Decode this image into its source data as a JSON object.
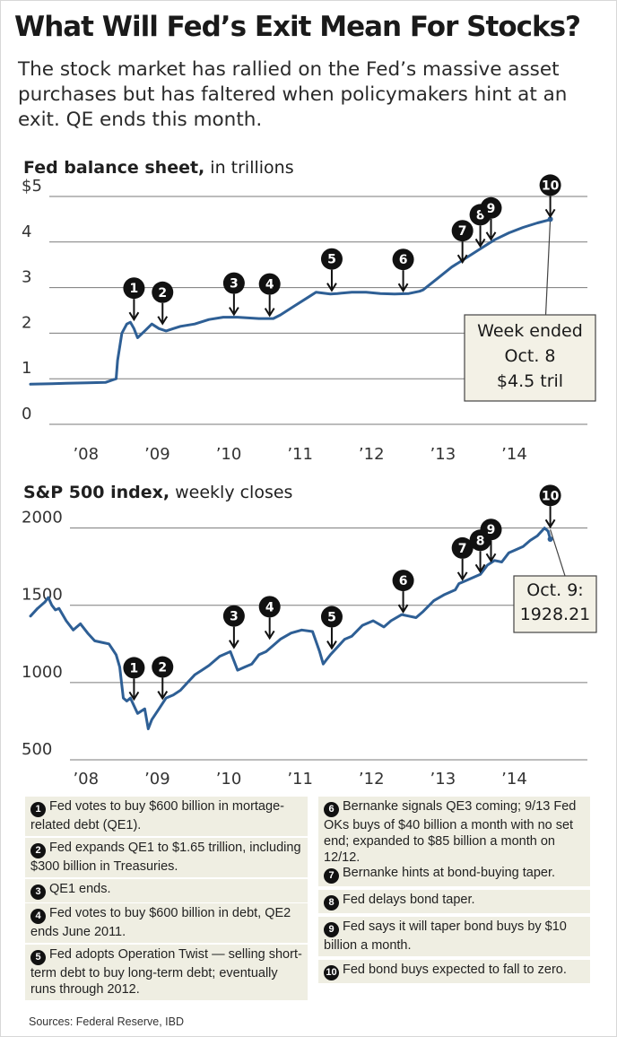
{
  "header": {
    "title": "What Will Fed’s Exit Mean For Stocks?",
    "subtitle": "The stock market has rallied on the Fed’s massive asset purchases but has faltered when policymakers hint at an exit. QE ends this month."
  },
  "colors": {
    "series": "#2e5f95",
    "note_bg": "#efeee2",
    "callout_bg": "#f3f1e6"
  },
  "chart_data": [
    {
      "type": "line",
      "title_bold": "Fed balance sheet,",
      "title_rest": " in trillions",
      "y_tick_labels": [
        "0",
        "1",
        "2",
        "3",
        "4",
        "$5"
      ],
      "y_ticks": [
        0,
        1,
        2,
        3,
        4,
        5
      ],
      "ylim": [
        0,
        5
      ],
      "x_tick_labels": [
        "’08",
        "’09",
        "’10",
        "’11",
        "’12",
        "’13",
        "’14"
      ],
      "x_ticks": [
        2008.0,
        2009.0,
        2010.0,
        2011.0,
        2012.0,
        2013.0,
        2014.0
      ],
      "xlim": [
        2007.4,
        2015.3
      ],
      "grid": true,
      "series": [
        {
          "x": [
            2007.5,
            2007.8,
            2008.0,
            2008.3,
            2008.55,
            2008.7,
            2008.72,
            2008.78,
            2008.85,
            2008.9,
            2008.95,
            2009.0,
            2009.1,
            2009.2,
            2009.3,
            2009.4,
            2009.5,
            2009.6,
            2009.8,
            2010.0,
            2010.2,
            2010.4,
            2010.7,
            2010.9,
            2011.0,
            2011.2,
            2011.4,
            2011.5,
            2011.6,
            2011.7,
            2011.8,
            2012.0,
            2012.2,
            2012.4,
            2012.6,
            2012.8,
            2012.95,
            2013.0,
            2013.2,
            2013.4,
            2013.6,
            2013.8,
            2014.0,
            2014.2,
            2014.4,
            2014.6,
            2014.75,
            2014.78
          ],
          "values": [
            0.88,
            0.89,
            0.9,
            0.91,
            0.92,
            1.0,
            1.4,
            2.0,
            2.2,
            2.24,
            2.1,
            1.9,
            2.05,
            2.2,
            2.1,
            2.05,
            2.1,
            2.15,
            2.2,
            2.3,
            2.35,
            2.35,
            2.32,
            2.32,
            2.4,
            2.6,
            2.8,
            2.9,
            2.88,
            2.86,
            2.87,
            2.9,
            2.9,
            2.87,
            2.86,
            2.87,
            2.92,
            2.95,
            3.2,
            3.45,
            3.65,
            3.85,
            4.05,
            4.2,
            4.32,
            4.42,
            4.48,
            4.5
          ]
        }
      ],
      "markers": [
        {
          "label": "1",
          "x": 2008.95,
          "value": 2.24
        },
        {
          "label": "2",
          "x": 2009.35,
          "value": 2.15
        },
        {
          "label": "3",
          "x": 2010.35,
          "value": 2.35
        },
        {
          "label": "4",
          "x": 2010.85,
          "value": 2.33
        },
        {
          "label": "5",
          "x": 2011.72,
          "value": 2.88
        },
        {
          "label": "6",
          "x": 2012.72,
          "value": 2.87
        },
        {
          "label": "7",
          "x": 2013.55,
          "value": 3.5
        },
        {
          "label": "8",
          "x": 2013.8,
          "value": 3.85
        },
        {
          "label": "9",
          "x": 2013.95,
          "value": 4.0
        },
        {
          "label": "10",
          "x": 2014.78,
          "value": 4.5
        }
      ],
      "annotation": [
        "Week ended",
        "Oct. 8",
        "$4.5 tril"
      ]
    },
    {
      "type": "line",
      "title_bold": "S&P 500 index,",
      "title_rest": " weekly closes",
      "y_tick_labels": [
        "500",
        "1000",
        "1500",
        "2000"
      ],
      "y_ticks": [
        500,
        1000,
        1500,
        2000
      ],
      "ylim": [
        500,
        2050
      ],
      "x_tick_labels": [
        "’08",
        "’09",
        "’10",
        "’11",
        "’12",
        "’13",
        "’14"
      ],
      "x_ticks": [
        2008.0,
        2009.0,
        2010.0,
        2011.0,
        2012.0,
        2013.0,
        2014.0
      ],
      "xlim": [
        2007.4,
        2015.3
      ],
      "grid": true,
      "series": [
        {
          "x": [
            2007.5,
            2007.6,
            2007.7,
            2007.75,
            2007.8,
            2007.85,
            2007.9,
            2008.0,
            2008.1,
            2008.2,
            2008.3,
            2008.4,
            2008.5,
            2008.6,
            2008.7,
            2008.75,
            2008.8,
            2008.85,
            2008.9,
            2008.95,
            2009.0,
            2009.1,
            2009.15,
            2009.2,
            2009.3,
            2009.4,
            2009.5,
            2009.6,
            2009.7,
            2009.8,
            2009.9,
            2010.0,
            2010.15,
            2010.3,
            2010.4,
            2010.5,
            2010.6,
            2010.7,
            2010.8,
            2010.9,
            2011.0,
            2011.15,
            2011.3,
            2011.45,
            2011.55,
            2011.6,
            2011.65,
            2011.7,
            2011.8,
            2011.9,
            2012.0,
            2012.15,
            2012.3,
            2012.45,
            2012.55,
            2012.7,
            2012.8,
            2012.9,
            2013.0,
            2013.15,
            2013.3,
            2013.45,
            2013.5,
            2013.6,
            2013.7,
            2013.8,
            2013.9,
            2014.0,
            2014.1,
            2014.2,
            2014.3,
            2014.4,
            2014.5,
            2014.6,
            2014.7,
            2014.75,
            2014.78
          ],
          "values": [
            1430,
            1480,
            1520,
            1550,
            1500,
            1470,
            1480,
            1400,
            1340,
            1380,
            1320,
            1270,
            1260,
            1250,
            1180,
            1100,
            900,
            880,
            900,
            850,
            800,
            830,
            700,
            760,
            830,
            900,
            920,
            950,
            1000,
            1050,
            1080,
            1110,
            1170,
            1200,
            1080,
            1100,
            1120,
            1180,
            1200,
            1240,
            1280,
            1320,
            1340,
            1330,
            1200,
            1120,
            1150,
            1180,
            1230,
            1280,
            1300,
            1370,
            1400,
            1360,
            1400,
            1440,
            1430,
            1420,
            1460,
            1530,
            1570,
            1600,
            1640,
            1660,
            1680,
            1700,
            1760,
            1790,
            1780,
            1840,
            1860,
            1880,
            1920,
            1950,
            2000,
            1980,
            1928.21
          ]
        }
      ],
      "markers": [
        {
          "label": "1",
          "x": 2008.95,
          "value": 875
        },
        {
          "label": "2",
          "x": 2009.35,
          "value": 880
        },
        {
          "label": "3",
          "x": 2010.35,
          "value": 1210
        },
        {
          "label": "4",
          "x": 2010.85,
          "value": 1270
        },
        {
          "label": "5",
          "x": 2011.72,
          "value": 1205
        },
        {
          "label": "6",
          "x": 2012.72,
          "value": 1440
        },
        {
          "label": "7",
          "x": 2013.55,
          "value": 1650
        },
        {
          "label": "8",
          "x": 2013.8,
          "value": 1700
        },
        {
          "label": "9",
          "x": 2013.95,
          "value": 1770
        },
        {
          "label": "10",
          "x": 2014.78,
          "value": 1990
        }
      ],
      "annotation": [
        "Oct. 9:",
        "1928.21"
      ]
    }
  ],
  "notes": [
    {
      "num": "1",
      "text": "Fed votes to buy $600 billion in mortage-related debt (QE1)."
    },
    {
      "num": "2",
      "text": "Fed expands QE1 to $1.65 trillion, including $300 billion in Treasuries."
    },
    {
      "num": "3",
      "text": "QE1 ends."
    },
    {
      "num": "4",
      "text": "Fed votes to buy $600 billion in debt, QE2 ends June 2011."
    },
    {
      "num": "5",
      "text": "Fed adopts Operation Twist — selling short-term debt to buy long-term debt; eventually runs through 2012."
    },
    {
      "num": "6",
      "text": "Bernanke signals QE3 coming; 9/13 Fed OKs buys of $40 billion a month with no set end; expanded to $85 billion a month on 12/12."
    },
    {
      "num": "7",
      "text": "Bernanke hints at bond-buying taper."
    },
    {
      "num": "8",
      "text": "Fed delays bond taper."
    },
    {
      "num": "9",
      "text": "Fed says it will taper bond buys by $10 billion a month."
    },
    {
      "num": "10",
      "text": "Fed bond buys expected to fall to zero."
    }
  ],
  "source": "Sources: Federal Reserve, IBD"
}
